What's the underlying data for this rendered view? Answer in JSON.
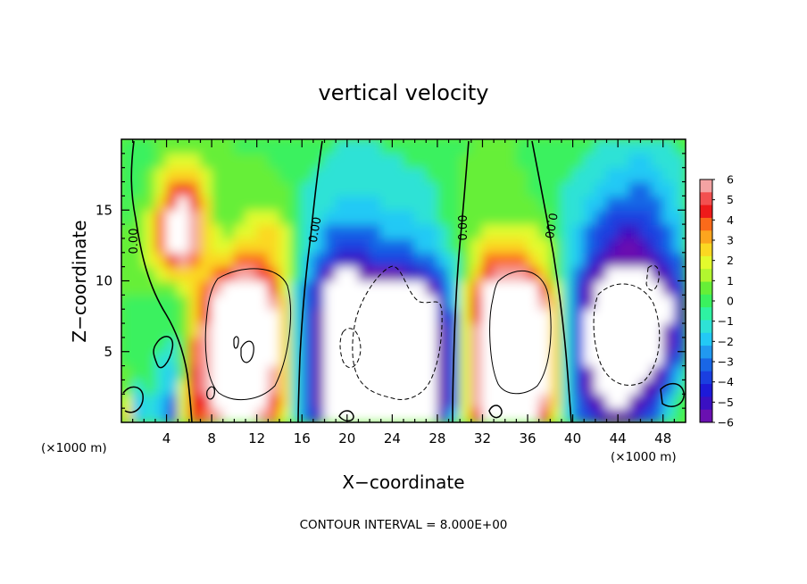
{
  "chart_data": {
    "type": "heatmap",
    "title": "vertical velocity",
    "xlabel": "X−coordinate",
    "ylabel": "Z−coordinate",
    "x_unit_left": "(×1000 m)",
    "x_unit_right": "(×1000 m)",
    "footer": "CONTOUR INTERVAL = 8.000E+00",
    "xlim": [
      0,
      50
    ],
    "ylim": [
      0,
      20
    ],
    "x_ticks": [
      4,
      8,
      12,
      16,
      20,
      24,
      28,
      32,
      36,
      40,
      44,
      48
    ],
    "y_ticks": [
      5,
      10,
      15
    ],
    "colorbar": {
      "min": -6,
      "max": 6,
      "labels": [
        "6",
        "5",
        "4",
        "3",
        "2",
        "1",
        "0",
        "−1",
        "−2",
        "−3",
        "−4",
        "−5",
        "−6"
      ],
      "colors": [
        "#f4a3a3",
        "#f35050",
        "#ee1a1a",
        "#fb6a1a",
        "#fca51e",
        "#fbd822",
        "#e3fb2d",
        "#b2f62f",
        "#66ef37",
        "#3af15e",
        "#2ef2a2",
        "#2ee2d6",
        "#23c9f5",
        "#2199f0",
        "#1966e6",
        "#1a3fe0",
        "#1d1ad8",
        "#3a10c2",
        "#6a10b0"
      ]
    },
    "contour_labels": [
      "0.00",
      "0.00",
      "0.00",
      "0.00"
    ],
    "cells_x": [
      0.5,
      1.5,
      2.5,
      3.5,
      4.5,
      5.5,
      6.5,
      7.5,
      8.5,
      9.5,
      10.5,
      11.5,
      12.5,
      13.5,
      14.5,
      15.5,
      16.5,
      17.5,
      18.5,
      19.5,
      20.5,
      21.5,
      22.5,
      23.5,
      24.5,
      25.5,
      26.5,
      27.5,
      28.5,
      29.5,
      30.5,
      31.5,
      32.5,
      33.5,
      34.5,
      35.5,
      36.5,
      37.5,
      38.5,
      39.5,
      40.5,
      41.5,
      42.5,
      43.5,
      44.5,
      45.5,
      46.5,
      47.5,
      48.5,
      49.5
    ],
    "cells_z": [
      0.5,
      1.5,
      2.5,
      3.5,
      4.5,
      5.5,
      6.5,
      7.5,
      8.5,
      9.5,
      10.5,
      11.5,
      12.5,
      13.5,
      14.5,
      15.5,
      16.5,
      17.5,
      18.5,
      19.5
    ],
    "values": [
      [
        3,
        -2,
        -1,
        -2,
        -4,
        2,
        5,
        4,
        6,
        7,
        7,
        7,
        6,
        4,
        2,
        -1,
        -3,
        -5,
        -7,
        -8,
        -8,
        -8,
        -8,
        -8,
        -7,
        -7,
        -8,
        -7,
        -5,
        -2,
        2,
        5,
        7,
        8,
        8,
        8,
        7,
        5,
        2,
        -1,
        -3,
        -4,
        -5,
        -6,
        -6,
        -5,
        -4,
        -3,
        -1,
        0
      ],
      [
        2,
        -2,
        -1,
        -2,
        -3,
        2,
        5,
        5,
        7,
        8,
        8,
        8,
        7,
        5,
        3,
        -1,
        -3,
        -6,
        -8,
        -9,
        -9,
        -8,
        -9,
        -9,
        -8,
        -8,
        -8,
        -7,
        -6,
        -3,
        2,
        6,
        8,
        9,
        9,
        9,
        8,
        6,
        3,
        -1,
        -3,
        -5,
        -6,
        -7,
        -7,
        -6,
        -5,
        -4,
        -2,
        0
      ],
      [
        1,
        -1,
        0,
        -1,
        -2,
        2,
        5,
        6,
        7,
        8,
        9,
        9,
        8,
        6,
        3,
        -1,
        -3,
        -6,
        -8,
        -9,
        -10,
        -9,
        -10,
        -10,
        -9,
        -8,
        -8,
        -7,
        -6,
        -3,
        2,
        6,
        9,
        10,
        10,
        10,
        9,
        7,
        3,
        -1,
        -4,
        -6,
        -7,
        -8,
        -8,
        -7,
        -6,
        -5,
        -3,
        -1
      ],
      [
        1,
        0,
        0,
        -1,
        -2,
        1,
        5,
        6,
        8,
        9,
        9,
        9,
        9,
        6,
        3,
        -1,
        -3,
        -6,
        -9,
        -10,
        -10,
        -10,
        -10,
        -10,
        -10,
        -9,
        -9,
        -8,
        -6,
        -3,
        2,
        6,
        9,
        10,
        11,
        11,
        9,
        7,
        3,
        -1,
        -4,
        -6,
        -8,
        -9,
        -9,
        -8,
        -7,
        -6,
        -4,
        -2
      ],
      [
        0,
        0,
        0,
        -1,
        -1,
        1,
        4,
        6,
        8,
        9,
        10,
        9,
        9,
        7,
        3,
        -1,
        -3,
        -6,
        -9,
        -10,
        -10,
        -10,
        -10,
        -10,
        -10,
        -9,
        -9,
        -8,
        -6,
        -3,
        2,
        6,
        9,
        11,
        11,
        11,
        10,
        7,
        3,
        -1,
        -4,
        -7,
        -8,
        -9,
        -9,
        -9,
        -8,
        -7,
        -5,
        -3
      ],
      [
        0,
        0,
        0,
        0,
        -1,
        1,
        4,
        6,
        8,
        9,
        10,
        10,
        9,
        7,
        3,
        -1,
        -3,
        -6,
        -9,
        -10,
        -11,
        -10,
        -10,
        -10,
        -10,
        -9,
        -9,
        -8,
        -6,
        -3,
        2,
        6,
        9,
        11,
        12,
        11,
        10,
        7,
        3,
        -1,
        -4,
        -7,
        -9,
        -9,
        -10,
        -9,
        -8,
        -7,
        -6,
        -4
      ],
      [
        0,
        0,
        0,
        0,
        0,
        1,
        3,
        6,
        8,
        9,
        10,
        10,
        9,
        7,
        3,
        -1,
        -3,
        -6,
        -8,
        -10,
        -10,
        -10,
        -10,
        -10,
        -10,
        -9,
        -9,
        -8,
        -6,
        -3,
        2,
        6,
        9,
        11,
        11,
        11,
        10,
        7,
        3,
        -1,
        -4,
        -7,
        -9,
        -10,
        -10,
        -9,
        -9,
        -8,
        -6,
        -4
      ],
      [
        0,
        0,
        0,
        0,
        0,
        1,
        3,
        5,
        7,
        9,
        9,
        10,
        9,
        7,
        3,
        -1,
        -3,
        -6,
        -8,
        -9,
        -10,
        -10,
        -10,
        -10,
        -9,
        -9,
        -8,
        -7,
        -5,
        -3,
        2,
        5,
        8,
        10,
        11,
        10,
        9,
        7,
        3,
        -1,
        -4,
        -7,
        -9,
        -10,
        -10,
        -9,
        -9,
        -8,
        -7,
        -5
      ],
      [
        0,
        0,
        0,
        0,
        0,
        1,
        3,
        5,
        7,
        8,
        9,
        9,
        8,
        6,
        3,
        -1,
        -3,
        -5,
        -8,
        -9,
        -9,
        -9,
        -9,
        -9,
        -8,
        -8,
        -8,
        -7,
        -5,
        -2,
        2,
        5,
        8,
        10,
        10,
        10,
        9,
        6,
        3,
        -1,
        -4,
        -6,
        -8,
        -9,
        -9,
        -9,
        -8,
        -8,
        -7,
        -5
      ],
      [
        1,
        1,
        1,
        1,
        1,
        2,
        3,
        4,
        6,
        7,
        8,
        8,
        7,
        5,
        2,
        -1,
        -3,
        -5,
        -7,
        -8,
        -8,
        -8,
        -8,
        -8,
        -7,
        -7,
        -7,
        -6,
        -4,
        -2,
        2,
        4,
        7,
        8,
        9,
        8,
        7,
        5,
        2,
        -1,
        -4,
        -6,
        -7,
        -8,
        -8,
        -8,
        -8,
        -7,
        -6,
        -4
      ],
      [
        1,
        1,
        1,
        2,
        3,
        3,
        3,
        3,
        4,
        5,
        6,
        6,
        5,
        4,
        2,
        0,
        -2,
        -4,
        -6,
        -7,
        -7,
        -6,
        -6,
        -6,
        -6,
        -5,
        -5,
        -4,
        -3,
        -1,
        1,
        3,
        5,
        6,
        6,
        6,
        5,
        3,
        1,
        -1,
        -3,
        -5,
        -6,
        -7,
        -7,
        -7,
        -7,
        -6,
        -5,
        -3
      ],
      [
        1,
        1,
        2,
        3,
        5,
        6,
        4,
        3,
        3,
        3,
        4,
        4,
        4,
        3,
        2,
        0,
        -2,
        -3,
        -4,
        -5,
        -5,
        -5,
        -4,
        -4,
        -4,
        -4,
        -3,
        -3,
        -2,
        -1,
        1,
        2,
        4,
        4,
        4,
        4,
        3,
        2,
        1,
        -1,
        -2,
        -4,
        -5,
        -6,
        -6,
        -6,
        -6,
        -5,
        -4,
        -3
      ],
      [
        1,
        1,
        2,
        4,
        7,
        8,
        6,
        3,
        2,
        2,
        3,
        3,
        3,
        3,
        2,
        0,
        -1,
        -2,
        -3,
        -4,
        -4,
        -4,
        -3,
        -3,
        -3,
        -3,
        -2,
        -2,
        -1,
        0,
        1,
        2,
        3,
        3,
        3,
        3,
        2,
        2,
        1,
        -1,
        -2,
        -3,
        -4,
        -5,
        -6,
        -6,
        -5,
        -4,
        -3,
        -2
      ],
      [
        1,
        1,
        2,
        4,
        7,
        9,
        6,
        3,
        2,
        1,
        2,
        2,
        3,
        3,
        2,
        0,
        -1,
        -2,
        -3,
        -3,
        -3,
        -3,
        -3,
        -2,
        -2,
        -2,
        -2,
        -2,
        -1,
        0,
        1,
        1,
        2,
        2,
        2,
        2,
        2,
        1,
        0,
        -1,
        -2,
        -3,
        -4,
        -4,
        -5,
        -5,
        -4,
        -4,
        -3,
        -2
      ],
      [
        0,
        1,
        2,
        4,
        7,
        9,
        6,
        3,
        1,
        1,
        1,
        2,
        2,
        2,
        1,
        0,
        -1,
        -1,
        -2,
        -2,
        -2,
        -2,
        -2,
        -2,
        -2,
        -2,
        -1,
        -1,
        0,
        0,
        1,
        1,
        1,
        1,
        1,
        1,
        1,
        1,
        0,
        -1,
        -1,
        -2,
        -3,
        -4,
        -4,
        -4,
        -4,
        -3,
        -2,
        -2
      ],
      [
        0,
        1,
        1,
        3,
        5,
        7,
        5,
        3,
        1,
        1,
        1,
        1,
        1,
        1,
        1,
        0,
        -1,
        -1,
        -1,
        -2,
        -2,
        -2,
        -2,
        -1,
        -1,
        -1,
        -1,
        -1,
        0,
        0,
        1,
        1,
        1,
        1,
        1,
        1,
        1,
        0,
        0,
        -1,
        -1,
        -2,
        -2,
        -3,
        -3,
        -3,
        -3,
        -3,
        -2,
        -1
      ],
      [
        0,
        0,
        1,
        2,
        4,
        5,
        4,
        2,
        1,
        1,
        1,
        1,
        1,
        1,
        1,
        0,
        -1,
        -1,
        -1,
        -1,
        -1,
        -1,
        -1,
        -1,
        -1,
        -1,
        -1,
        -1,
        0,
        0,
        1,
        1,
        1,
        1,
        1,
        1,
        0,
        0,
        0,
        -1,
        -1,
        -1,
        -2,
        -2,
        -2,
        -3,
        -3,
        -2,
        -2,
        -1
      ],
      [
        0,
        0,
        1,
        2,
        3,
        3,
        3,
        2,
        1,
        1,
        1,
        1,
        1,
        1,
        0,
        0,
        0,
        -1,
        -1,
        -1,
        -1,
        -1,
        -1,
        -1,
        -1,
        -1,
        -1,
        0,
        0,
        0,
        1,
        1,
        1,
        1,
        1,
        1,
        0,
        0,
        0,
        0,
        -1,
        -1,
        -1,
        -2,
        -2,
        -2,
        -2,
        -2,
        -1,
        -1
      ],
      [
        0,
        0,
        0,
        1,
        2,
        2,
        2,
        1,
        1,
        1,
        1,
        1,
        1,
        0,
        0,
        0,
        0,
        0,
        -1,
        -1,
        -1,
        -1,
        -1,
        -1,
        -1,
        0,
        0,
        0,
        0,
        0,
        1,
        1,
        1,
        1,
        1,
        0,
        0,
        0,
        0,
        0,
        0,
        -1,
        -1,
        -1,
        -1,
        -2,
        -2,
        -1,
        -1,
        -1
      ],
      [
        0,
        0,
        0,
        1,
        1,
        1,
        1,
        1,
        1,
        1,
        0,
        0,
        0,
        0,
        0,
        0,
        0,
        0,
        0,
        -1,
        -1,
        -1,
        -1,
        0,
        0,
        0,
        0,
        0,
        0,
        0,
        0,
        1,
        1,
        1,
        1,
        0,
        0,
        0,
        0,
        0,
        0,
        0,
        -1,
        -1,
        -1,
        -1,
        -1,
        -1,
        -1,
        0
      ]
    ]
  }
}
